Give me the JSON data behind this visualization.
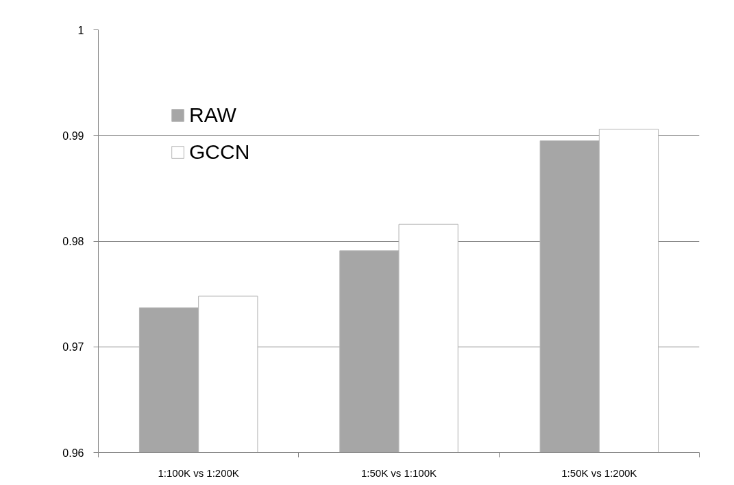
{
  "chart_data": {
    "type": "bar",
    "categories": [
      "1:100K vs 1:200K",
      "1:50K vs 1:100K",
      "1:50K vs 1:200K"
    ],
    "series": [
      {
        "name": "RAW",
        "color": "#a6a6a6",
        "values": [
          0.9737,
          0.9791,
          0.9895
        ]
      },
      {
        "name": "GCCN",
        "color": "#ffffff",
        "values": [
          0.9748,
          0.9816,
          0.9906
        ]
      }
    ],
    "ylim": [
      0.96,
      1
    ],
    "yticks": [
      0.96,
      0.97,
      0.98,
      0.99,
      1
    ],
    "grid": "y",
    "legend": "top left"
  }
}
